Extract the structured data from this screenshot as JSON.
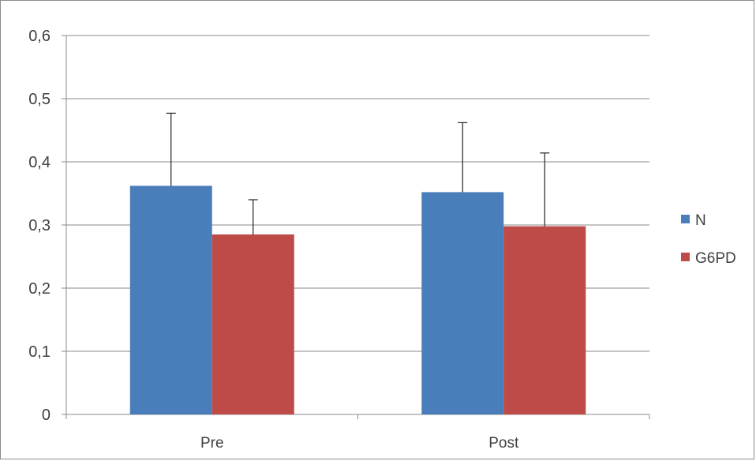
{
  "chart_data": {
    "type": "bar",
    "title": "",
    "xlabel": "",
    "ylabel": "",
    "categories": [
      "Pre",
      "Post"
    ],
    "ylim": [
      0,
      0.6
    ],
    "yticks": [
      "0",
      "0,1",
      "0,2",
      "0,3",
      "0,4",
      "0,5",
      "0,6"
    ],
    "grid": true,
    "legend_position": "right",
    "error_bars": "upper",
    "series": [
      {
        "name": "N",
        "color": "#4a7ebb",
        "values": [
          0.362,
          0.352
        ],
        "errors": [
          0.115,
          0.11
        ]
      },
      {
        "name": "G6PD",
        "color": "#be4b48",
        "values": [
          0.285,
          0.298
        ],
        "errors": [
          0.055,
          0.116
        ]
      }
    ]
  }
}
